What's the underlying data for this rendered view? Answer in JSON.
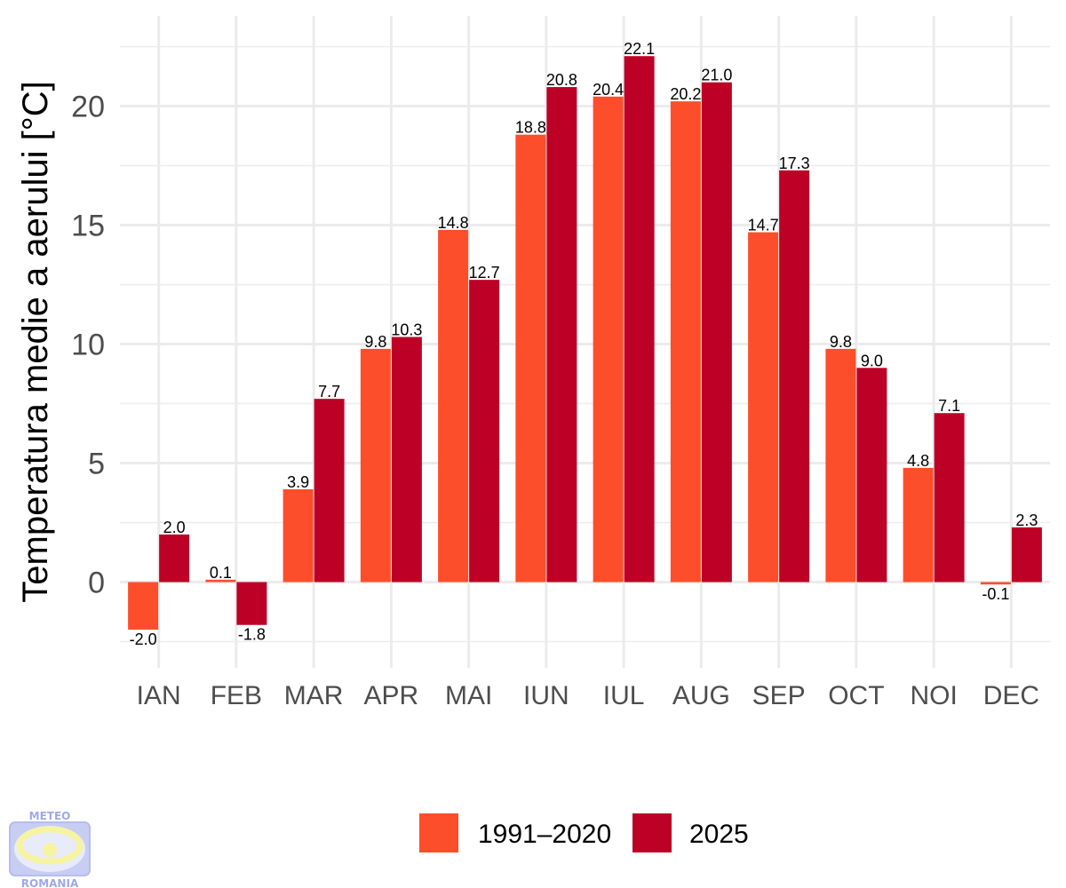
{
  "chart_data": {
    "type": "bar",
    "title": "",
    "xlabel": "",
    "ylabel": "Temperatura medie a aerului [°C]",
    "categories": [
      "IAN",
      "FEB",
      "MAR",
      "APR",
      "MAI",
      "IUN",
      "IUL",
      "AUG",
      "SEP",
      "OCT",
      "NOI",
      "DEC"
    ],
    "series": [
      {
        "name": "1991–2020",
        "color": "#fc4e2a",
        "values": [
          -2.0,
          0.1,
          3.9,
          9.8,
          14.8,
          18.8,
          20.4,
          20.2,
          14.7,
          9.8,
          4.8,
          -0.1
        ],
        "labels": [
          "-2.0",
          "0.1",
          "3.9",
          "9.8",
          "14.8",
          "18.8",
          "20.4",
          "20.2",
          "14.7",
          "9.8",
          "4.8",
          "-0.1"
        ]
      },
      {
        "name": "2025",
        "color": "#bd0026",
        "values": [
          2.0,
          -1.8,
          7.7,
          10.3,
          12.7,
          20.8,
          22.1,
          21.0,
          17.3,
          9.0,
          7.1,
          2.3
        ],
        "labels": [
          "2.0",
          "-1.8",
          "7.7",
          "10.3",
          "12.7",
          "20.8",
          "22.1",
          "21.0",
          "17.3",
          "9.0",
          "7.1",
          "2.3"
        ]
      }
    ],
    "yticks": [
      0,
      5,
      10,
      15,
      20
    ],
    "ylim": [
      -3.5,
      23.8
    ],
    "grid": true,
    "legend_position": "bottom"
  },
  "logo": {
    "top_text": "METEO",
    "bottom_text": "ROMANIA"
  }
}
